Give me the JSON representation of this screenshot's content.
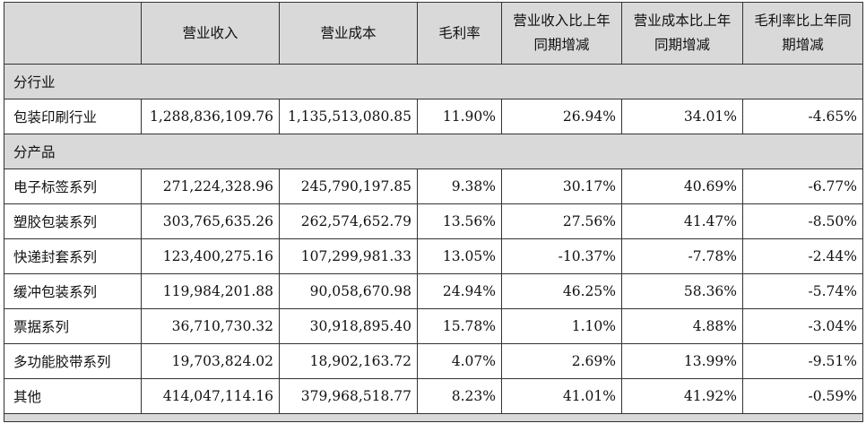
{
  "header": {
    "col0": "",
    "col1": "营业收入",
    "col2": "营业成本",
    "col3": "毛利率",
    "col4": "营业收入比上年同期增减",
    "col5": "营业成本比上年同期增减",
    "col6": "毛利率比上年同期增减"
  },
  "section_industry": "分行业",
  "industry_rows": [
    {
      "name": "包装印刷行业",
      "revenue": "1,288,836,109.76",
      "cost": "1,135,513,080.85",
      "margin": "11.90%",
      "rev_change": "26.94%",
      "cost_change": "34.01%",
      "margin_change": "-4.65%"
    }
  ],
  "section_product": "分产品",
  "product_rows": [
    {
      "name": "电子标签系列",
      "revenue": "271,224,328.96",
      "cost": "245,790,197.85",
      "margin": "9.38%",
      "rev_change": "30.17%",
      "cost_change": "40.69%",
      "margin_change": "-6.77%"
    },
    {
      "name": "塑胶包装系列",
      "revenue": "303,765,635.26",
      "cost": "262,574,652.79",
      "margin": "13.56%",
      "rev_change": "27.56%",
      "cost_change": "41.47%",
      "margin_change": "-8.50%"
    },
    {
      "name": "快递封套系列",
      "revenue": "123,400,275.16",
      "cost": "107,299,981.33",
      "margin": "13.05%",
      "rev_change": "-10.37%",
      "cost_change": "-7.78%",
      "margin_change": "-2.44%"
    },
    {
      "name": "缓冲包装系列",
      "revenue": "119,984,201.88",
      "cost": "90,058,670.98",
      "margin": "24.94%",
      "rev_change": "46.25%",
      "cost_change": "58.36%",
      "margin_change": "-5.74%"
    },
    {
      "name": "票据系列",
      "revenue": "36,710,730.32",
      "cost": "30,918,895.40",
      "margin": "15.78%",
      "rev_change": "1.10%",
      "cost_change": "4.88%",
      "margin_change": "-3.04%"
    },
    {
      "name": "多功能胶带系列",
      "revenue": "19,703,824.02",
      "cost": "18,902,163.72",
      "margin": "4.07%",
      "rev_change": "2.69%",
      "cost_change": "13.99%",
      "margin_change": "-9.51%"
    },
    {
      "name": "其他",
      "revenue": "414,047,114.16",
      "cost": "379,968,518.77",
      "margin": "8.23%",
      "rev_change": "41.01%",
      "cost_change": "41.92%",
      "margin_change": "-0.59%"
    }
  ]
}
